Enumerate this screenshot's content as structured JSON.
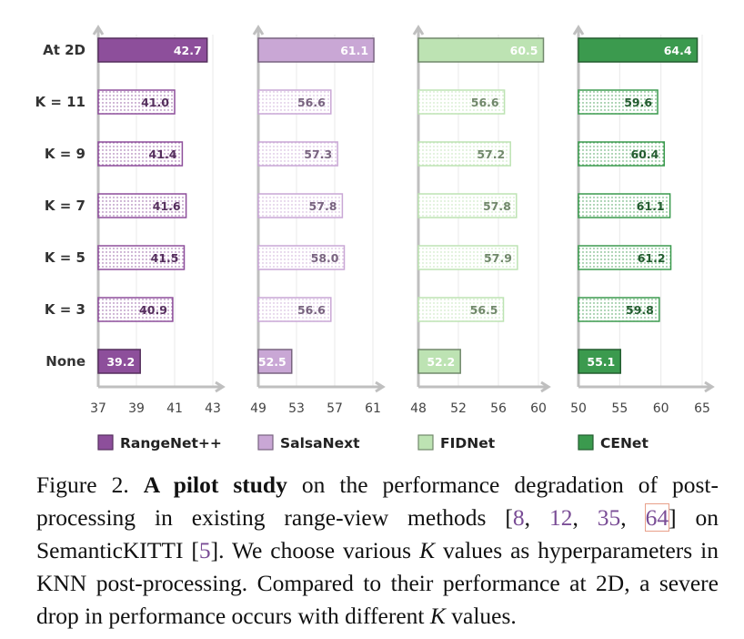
{
  "chart_data": {
    "type": "bar",
    "orientation": "horizontal",
    "categories": [
      "At 2D",
      "K = 11",
      "K = 9",
      "K = 7",
      "K = 5",
      "K = 3",
      "None"
    ],
    "panels": [
      {
        "name": "RangeNet++",
        "color": "#8d4f9b",
        "light_color": "#f1e5f3",
        "values": [
          42.7,
          41.0,
          41.4,
          41.6,
          41.5,
          40.9,
          39.2
        ],
        "value_labels": [
          "42.7",
          "41.0",
          "41.4",
          "41.6",
          "41.5",
          "40.9",
          "39.2"
        ],
        "xlim": [
          37,
          43
        ],
        "ticks": [
          "37",
          "39",
          "41",
          "43"
        ]
      },
      {
        "name": "SalsaNext",
        "color": "#c9a7d5",
        "light_color": "#f5eef8",
        "values": [
          61.1,
          56.6,
          57.3,
          57.8,
          58.0,
          56.6,
          52.5
        ],
        "value_labels": [
          "61.1",
          "56.6",
          "57.3",
          "57.8",
          "58.0",
          "56.6",
          "52.5"
        ],
        "xlim": [
          49,
          61
        ],
        "ticks": [
          "49",
          "53",
          "57",
          "61"
        ]
      },
      {
        "name": "FIDNet",
        "color": "#bde3b3",
        "light_color": "#edf7ea",
        "values": [
          60.5,
          56.6,
          57.2,
          57.8,
          57.9,
          56.5,
          52.2
        ],
        "value_labels": [
          "60.5",
          "56.6",
          "57.2",
          "57.8",
          "57.9",
          "56.5",
          "52.2"
        ],
        "xlim": [
          48,
          60
        ],
        "ticks": [
          "48",
          "52",
          "56",
          "60"
        ]
      },
      {
        "name": "CENet",
        "color": "#3b9a4e",
        "light_color": "#e6f4e6",
        "values": [
          64.4,
          59.6,
          60.4,
          61.1,
          61.2,
          59.8,
          55.1
        ],
        "value_labels": [
          "64.4",
          "59.6",
          "60.4",
          "61.1",
          "61.2",
          "59.8",
          "55.1"
        ],
        "xlim": [
          50,
          65
        ],
        "ticks": [
          "50",
          "55",
          "60",
          "65"
        ]
      }
    ],
    "legend": [
      "RangeNet++",
      "SalsaNext",
      "FIDNet",
      "CENet"
    ],
    "legend_position": "bottom",
    "grid": true
  },
  "caption": {
    "label": "Figure 2. ",
    "bold": "A pilot study",
    "t1": " on the performance degradation of post-processing in existing range-view methods [",
    "r1": "8",
    "s1": ", ",
    "r2": "12",
    "s2": ", ",
    "r3": "35",
    "s3": ", ",
    "r4": "64",
    "t2": "] on SemanticKITTI [",
    "r5": "5",
    "t3": "]. We choose various ",
    "k1": "K",
    "t4": " values as hyperparameters in KNN post-processing. Compared to their performance at 2D, a severe drop in performance occurs with different ",
    "k2": "K",
    "t5": " values."
  }
}
